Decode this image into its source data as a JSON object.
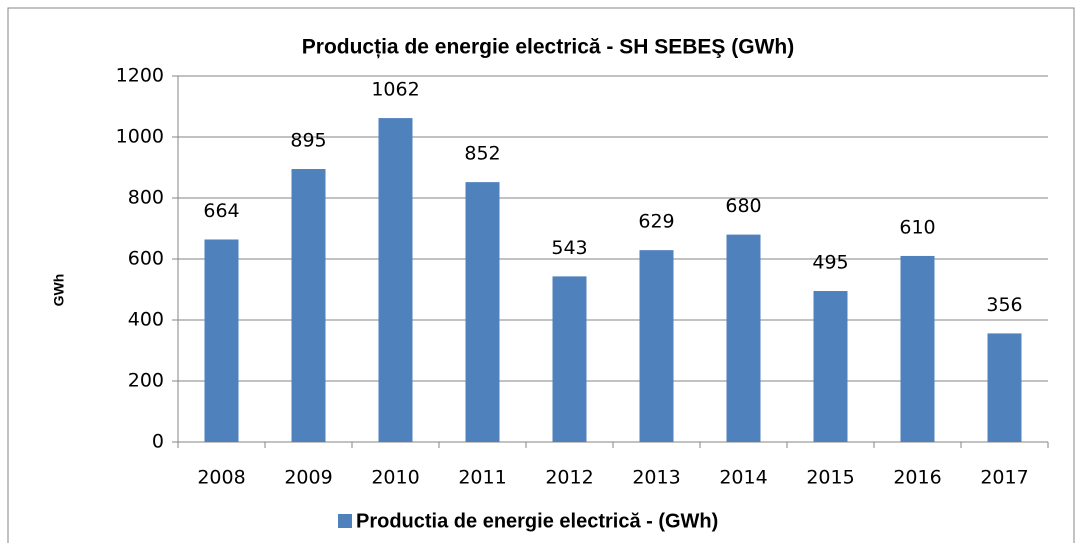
{
  "chart_data": {
    "type": "bar",
    "title": "Producția de energie electrică - SH SEBEŞ (GWh)",
    "ylabel": "GWh",
    "categories": [
      "2008",
      "2009",
      "2010",
      "2011",
      "2012",
      "2013",
      "2014",
      "2015",
      "2016",
      "2017"
    ],
    "series": [
      {
        "name": "Productia de energie electrică - (GWh)",
        "color": "#4f81bd",
        "values": [
          664,
          895,
          1062,
          852,
          543,
          629,
          680,
          495,
          610,
          356
        ]
      }
    ],
    "ylim": [
      0,
      1200
    ],
    "yticks": [
      0,
      200,
      400,
      600,
      800,
      1000,
      1200
    ],
    "grid": true,
    "legend": "bottom"
  }
}
